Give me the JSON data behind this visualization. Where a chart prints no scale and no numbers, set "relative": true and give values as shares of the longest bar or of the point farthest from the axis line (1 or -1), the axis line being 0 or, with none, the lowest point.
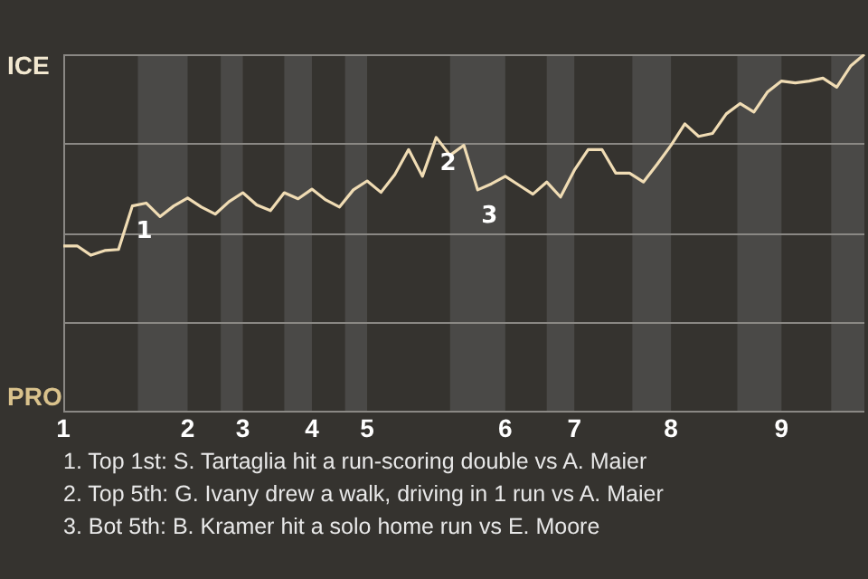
{
  "chart_data": {
    "type": "line",
    "relative": true,
    "categories": [
      "1",
      null,
      null,
      null,
      null,
      null,
      null,
      null,
      null,
      "2",
      null,
      null,
      null,
      "3",
      null,
      null,
      null,
      null,
      "4",
      null,
      null,
      null,
      "5",
      null,
      null,
      null,
      null,
      null,
      null,
      null,
      null,
      null,
      "6",
      null,
      null,
      null,
      null,
      "7",
      null,
      null,
      null,
      null,
      null,
      null,
      "8",
      null,
      null,
      null,
      null,
      null,
      null,
      null,
      "9",
      null,
      null,
      null,
      null,
      null,
      null
    ],
    "series": [
      {
        "color": "#f0dcb4",
        "values": [
          0.463,
          0.463,
          0.437,
          0.45,
          0.453,
          0.575,
          0.583,
          0.545,
          0.575,
          0.597,
          0.572,
          0.552,
          0.587,
          0.612,
          0.578,
          0.562,
          0.612,
          0.595,
          0.622,
          0.592,
          0.572,
          0.62,
          0.645,
          0.613,
          0.663,
          0.733,
          0.658,
          0.767,
          0.717,
          0.745,
          0.62,
          0.637,
          0.658,
          0.633,
          0.608,
          0.642,
          0.6,
          0.675,
          0.733,
          0.733,
          0.667,
          0.667,
          0.642,
          0.692,
          0.745,
          0.805,
          0.77,
          0.778,
          0.833,
          0.862,
          0.838,
          0.895,
          0.925,
          0.92,
          0.925,
          0.933,
          0.908,
          0.967,
          1
        ]
      }
    ],
    "grid": "y",
    "annotations": [
      "ICE",
      "PRO",
      {
        "text": "1",
        "y": 0.575
      },
      {
        "text": "2",
        "y": 0.767
      },
      {
        "text": "3",
        "y": 0.62
      },
      "1. Top 1st: S. Tartaglia hit a run-scoring double vs A. Maier",
      "2. Top 5th: G. Ivany drew a walk, driving in 1 run vs A. Maier",
      "3. Bot 5th: B. Kramer hit a solo home run vs E. Moore"
    ],
    "marker": "none",
    "line_style": "solid"
  }
}
